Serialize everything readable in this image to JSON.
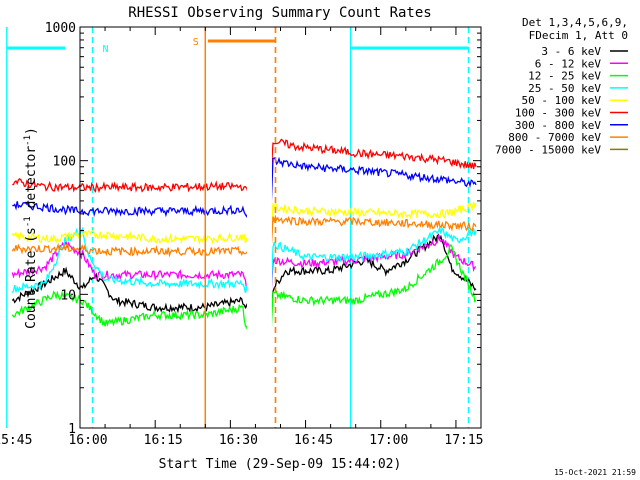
{
  "chart_data": {
    "type": "line",
    "title": "RHESSI Observing Summary Count Rates",
    "xlabel": "Start Time (29-Sep-09 15:44:02)",
    "ylabel_main": "Count Rate (s",
    "ylabel_sup1": "-1",
    "ylabel_mid": " detector",
    "ylabel_sup2": "-1",
    "ylabel_end": ")",
    "yscale": "log",
    "ylim": [
      1,
      1000
    ],
    "xlim_minutes": [
      15.0,
      95.0
    ],
    "x_tick_labels": [
      "15:45",
      "16:00",
      "16:15",
      "16:30",
      "16:45",
      "17:00",
      "17:15"
    ],
    "x_tick_minutes": [
      15,
      30,
      45,
      60,
      75,
      90,
      105
    ],
    "y_tick_labels": [
      "1",
      "10",
      "100",
      "1000"
    ],
    "y_tick_values": [
      1,
      10,
      100,
      1000
    ],
    "legend_header": [
      "Det 1,3,4,5,6,9,",
      "FDecim 1, Att 0"
    ],
    "legend_location": "right",
    "series": [
      {
        "name": "3 - 6 keV",
        "color": "#000000",
        "points": [
          [
            1.5,
            9
          ],
          [
            8,
            12
          ],
          [
            12,
            15
          ],
          [
            15.5,
            11
          ],
          [
            18,
            14
          ],
          [
            22,
            9
          ],
          [
            30,
            8
          ],
          [
            40,
            8
          ],
          [
            47.5,
            9
          ],
          [
            48,
            8
          ],
          [
            52,
            5
          ],
          [
            53,
            5
          ],
          [
            53.5,
            11
          ],
          [
            56,
            15
          ],
          [
            65,
            15
          ],
          [
            72,
            18
          ],
          [
            76,
            15
          ],
          [
            80,
            18
          ],
          [
            87,
            28
          ],
          [
            89,
            16
          ],
          [
            94,
            11
          ]
        ]
      },
      {
        "name": "6 - 12 keV",
        "color": "#ff00ff",
        "points": [
          [
            1.5,
            14
          ],
          [
            8,
            16
          ],
          [
            12,
            24
          ],
          [
            15.5,
            20
          ],
          [
            18,
            14
          ],
          [
            30,
            14
          ],
          [
            40,
            14
          ],
          [
            47.5,
            14
          ],
          [
            48,
            12
          ],
          [
            52,
            8
          ],
          [
            53,
            8
          ],
          [
            53.5,
            18
          ],
          [
            60,
            17
          ],
          [
            70,
            18
          ],
          [
            80,
            20
          ],
          [
            87,
            26
          ],
          [
            90,
            19
          ],
          [
            94,
            16
          ]
        ]
      },
      {
        "name": "12 - 25 keV",
        "color": "#00ff00",
        "points": [
          [
            1.5,
            7
          ],
          [
            5,
            8
          ],
          [
            10,
            10
          ],
          [
            15.5,
            9
          ],
          [
            20,
            6
          ],
          [
            30,
            7
          ],
          [
            40,
            7
          ],
          [
            47.5,
            8
          ],
          [
            48,
            6
          ],
          [
            52,
            4
          ],
          [
            53,
            4
          ],
          [
            53.5,
            10
          ],
          [
            60,
            9
          ],
          [
            70,
            9
          ],
          [
            80,
            11
          ],
          [
            87,
            18
          ],
          [
            89,
            22
          ],
          [
            94,
            9
          ]
        ]
      },
      {
        "name": "25 - 50 keV",
        "color": "#00ffff",
        "points": [
          [
            1.5,
            11
          ],
          [
            8,
            12
          ],
          [
            12,
            25
          ],
          [
            15.5,
            31
          ],
          [
            16.5,
            20
          ],
          [
            20,
            13
          ],
          [
            30,
            12
          ],
          [
            40,
            12
          ],
          [
            47.5,
            12
          ],
          [
            48,
            11
          ],
          [
            52,
            8
          ],
          [
            53,
            8
          ],
          [
            53.5,
            24
          ],
          [
            60,
            19
          ],
          [
            70,
            19
          ],
          [
            80,
            21
          ],
          [
            87,
            30
          ],
          [
            90,
            25
          ],
          [
            94,
            30
          ]
        ]
      },
      {
        "name": "50 - 100 keV",
        "color": "#ffff00",
        "points": [
          [
            1.5,
            27
          ],
          [
            10,
            26
          ],
          [
            14,
            28
          ],
          [
            20,
            28
          ],
          [
            30,
            26
          ],
          [
            40,
            26
          ],
          [
            47.5,
            27
          ],
          [
            48,
            25
          ],
          [
            52,
            22
          ],
          [
            53,
            22
          ],
          [
            53.5,
            45
          ],
          [
            60,
            42
          ],
          [
            70,
            41
          ],
          [
            80,
            40
          ],
          [
            88,
            40
          ],
          [
            92,
            44
          ],
          [
            94,
            48
          ]
        ]
      },
      {
        "name": "100 - 300 keV",
        "color": "#ff0000",
        "points": [
          [
            1.5,
            70
          ],
          [
            8,
            64
          ],
          [
            14,
            63
          ],
          [
            20,
            63
          ],
          [
            30,
            63
          ],
          [
            40,
            64
          ],
          [
            47.5,
            64
          ],
          [
            48,
            60
          ],
          [
            52,
            56
          ],
          [
            53,
            56
          ],
          [
            53.5,
            140
          ],
          [
            58,
            128
          ],
          [
            65,
            120
          ],
          [
            72,
            112
          ],
          [
            80,
            108
          ],
          [
            88,
            100
          ],
          [
            94,
            90
          ]
        ]
      },
      {
        "name": "300 - 800 keV",
        "color": "#0000ff",
        "points": [
          [
            1.5,
            47
          ],
          [
            8,
            45
          ],
          [
            14,
            42
          ],
          [
            20,
            42
          ],
          [
            30,
            42
          ],
          [
            40,
            42
          ],
          [
            47.5,
            43
          ],
          [
            48,
            40
          ],
          [
            52,
            36
          ],
          [
            53,
            36
          ],
          [
            53.5,
            100
          ],
          [
            60,
            90
          ],
          [
            70,
            85
          ],
          [
            80,
            78
          ],
          [
            88,
            72
          ],
          [
            94,
            66
          ]
        ]
      },
      {
        "name": "800 - 7000 keV",
        "color": "#ff8000",
        "points": [
          [
            1.5,
            22
          ],
          [
            8,
            22
          ],
          [
            14,
            22
          ],
          [
            20,
            21
          ],
          [
            30,
            21
          ],
          [
            40,
            21
          ],
          [
            47.5,
            21
          ],
          [
            48,
            20
          ],
          [
            52,
            19
          ],
          [
            53,
            19
          ],
          [
            53.5,
            37
          ],
          [
            60,
            35
          ],
          [
            70,
            35
          ],
          [
            80,
            34
          ],
          [
            88,
            33
          ],
          [
            94,
            32
          ]
        ]
      },
      {
        "name": "7000 - 15000 keV",
        "color": "#808000",
        "points": []
      }
    ],
    "annotations": [
      {
        "label": "N",
        "color": "#00ffff"
      },
      {
        "label": "S",
        "color": "#ff8000"
      }
    ]
  },
  "timestamp": "15-Oct-2021 21:59"
}
